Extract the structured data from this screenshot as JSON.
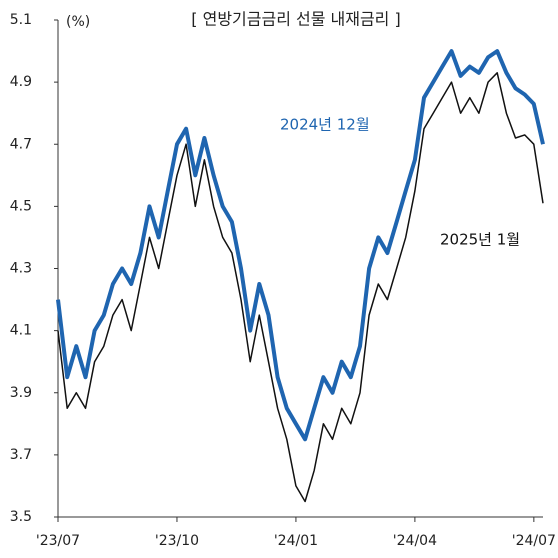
{
  "chart_data": {
    "type": "line",
    "title": "[ 연방기금금리 선물 내재금리 ]",
    "y_label": "(%)",
    "categories": [
      "'23/07",
      null,
      null,
      null,
      null,
      null,
      null,
      null,
      null,
      null,
      null,
      null,
      null,
      "'23/10",
      null,
      null,
      null,
      null,
      null,
      null,
      null,
      null,
      null,
      null,
      null,
      null,
      "'24/01",
      null,
      null,
      null,
      null,
      null,
      null,
      null,
      null,
      null,
      null,
      null,
      null,
      "'24/04",
      null,
      null,
      null,
      null,
      null,
      null,
      null,
      null,
      null,
      null,
      null,
      null,
      "'24/07",
      null
    ],
    "series": [
      {
        "name": "2024년 12월",
        "color": "#1f65b0",
        "width": 4,
        "values": [
          4.2,
          3.95,
          4.05,
          3.95,
          4.1,
          4.15,
          4.25,
          4.3,
          4.25,
          4.35,
          4.5,
          4.4,
          4.55,
          4.7,
          4.75,
          4.6,
          4.72,
          4.6,
          4.5,
          4.45,
          4.3,
          4.1,
          4.25,
          4.15,
          3.95,
          3.85,
          3.8,
          3.75,
          3.85,
          3.95,
          3.9,
          4.0,
          3.95,
          4.05,
          4.3,
          4.4,
          4.35,
          4.45,
          4.55,
          4.65,
          4.85,
          4.9,
          4.95,
          5.0,
          4.92,
          4.95,
          4.93,
          4.98,
          5.0,
          4.93,
          4.88,
          4.86,
          4.83,
          4.7
        ]
      },
      {
        "name": "2025년 1월",
        "color": "#111111",
        "width": 1.5,
        "values": [
          4.1,
          3.85,
          3.9,
          3.85,
          4.0,
          4.05,
          4.15,
          4.2,
          4.1,
          4.25,
          4.4,
          4.3,
          4.45,
          4.6,
          4.7,
          4.5,
          4.65,
          4.5,
          4.4,
          4.35,
          4.2,
          4.0,
          4.15,
          4.0,
          3.85,
          3.75,
          3.6,
          3.55,
          3.65,
          3.8,
          3.75,
          3.85,
          3.8,
          3.9,
          4.15,
          4.25,
          4.2,
          4.3,
          4.4,
          4.55,
          4.75,
          4.8,
          4.85,
          4.9,
          4.8,
          4.85,
          4.8,
          4.9,
          4.93,
          4.8,
          4.72,
          4.73,
          4.7,
          4.51
        ]
      }
    ],
    "ylim": [
      3.5,
      5.1
    ],
    "yticks": [
      3.5,
      3.7,
      3.9,
      4.1,
      4.3,
      4.5,
      4.7,
      4.9,
      5.1
    ]
  }
}
